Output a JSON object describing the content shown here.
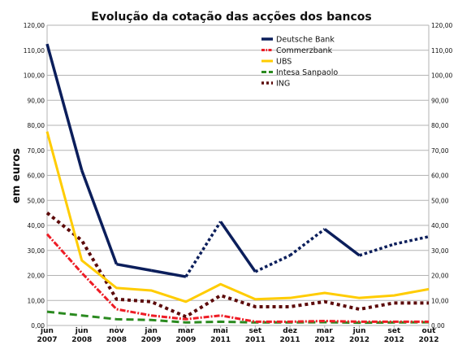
{
  "chart_data": {
    "type": "line",
    "title": "Evolução da cotação das acções dos bancos",
    "ylabel": "em euros",
    "xlabel": "",
    "ylim": [
      0,
      120
    ],
    "y_ticks": [
      "0,00",
      "10,00",
      "20,00",
      "30,00",
      "40,00",
      "50,00",
      "60,00",
      "70,00",
      "80,00",
      "90,00",
      "100,00",
      "110,00",
      "120,00"
    ],
    "categories": [
      [
        "jun",
        "2007"
      ],
      [
        "jun",
        "2008"
      ],
      [
        "nov",
        "2008"
      ],
      [
        "jan",
        "2009"
      ],
      [
        "mar",
        "2009"
      ],
      [
        "mai",
        "2011"
      ],
      [
        "set",
        "2011"
      ],
      [
        "dez",
        "2011"
      ],
      [
        "mar",
        "2012"
      ],
      [
        "jun",
        "2012"
      ],
      [
        "set",
        "2012"
      ],
      [
        "out",
        "2012"
      ]
    ],
    "grid": "horizontal",
    "legend_position": "top-right",
    "series": [
      {
        "name": "Deutsche Bank",
        "color": "#0b1e5b",
        "style": "solid-dotted",
        "values": [
          112.5,
          62,
          24.5,
          22,
          19.5,
          41.5,
          21.5,
          28,
          38.5,
          28,
          32.5,
          35.5
        ]
      },
      {
        "name": "Commerzbank",
        "color": "#ee1c25",
        "style": "dash-dot",
        "values": [
          36.5,
          21,
          6.5,
          4,
          2.5,
          4,
          1.5,
          1.5,
          1.8,
          1.5,
          1.5,
          1.5
        ]
      },
      {
        "name": "UBS",
        "color": "#ffcc00",
        "style": "solid",
        "values": [
          77.5,
          26,
          15,
          14,
          9.5,
          16.5,
          10.5,
          11,
          13,
          11,
          12,
          14.5
        ]
      },
      {
        "name": "Intesa Sanpaolo",
        "color": "#2a8a1f",
        "style": "dashed",
        "values": [
          5.5,
          4,
          2.5,
          2.2,
          1.2,
          1.5,
          1.2,
          1.2,
          1.3,
          1.1,
          1.2,
          1.3
        ]
      },
      {
        "name": "ING",
        "color": "#5c0a0a",
        "style": "dotted",
        "values": [
          45,
          34,
          10.5,
          9.5,
          3.5,
          12,
          7.5,
          7.5,
          9.5,
          6.5,
          9,
          9
        ]
      }
    ]
  }
}
